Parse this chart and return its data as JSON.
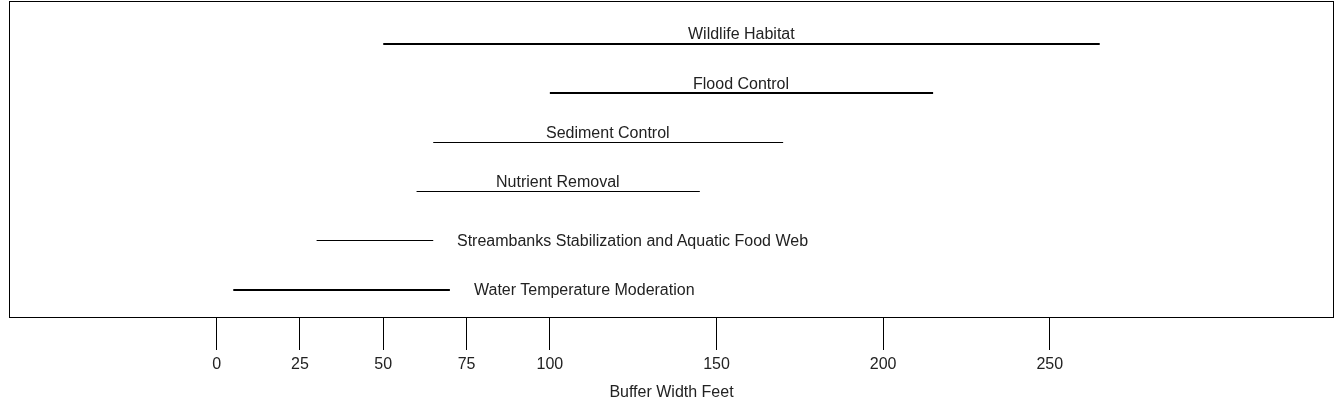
{
  "chart_data": {
    "type": "bar",
    "orientation": "horizontal",
    "xlabel": "Buffer Width Feet",
    "categories": [
      "Wildlife Habitat",
      "Flood Control",
      "Sediment Control",
      "Nutrient Removal",
      "Streambanks Stabilization and Aquatic Food Web",
      "Water Temperature Moderation"
    ],
    "base": [
      50,
      100,
      65,
      60,
      30,
      5
    ],
    "values": [
      215,
      115,
      105,
      85,
      35,
      65
    ],
    "color": "#000000",
    "xlim": [
      -62,
      335
    ],
    "xticks": [
      0,
      25,
      50,
      75,
      100,
      150,
      200,
      250
    ],
    "tick_labels": "x",
    "grid": false,
    "legend": false
  }
}
